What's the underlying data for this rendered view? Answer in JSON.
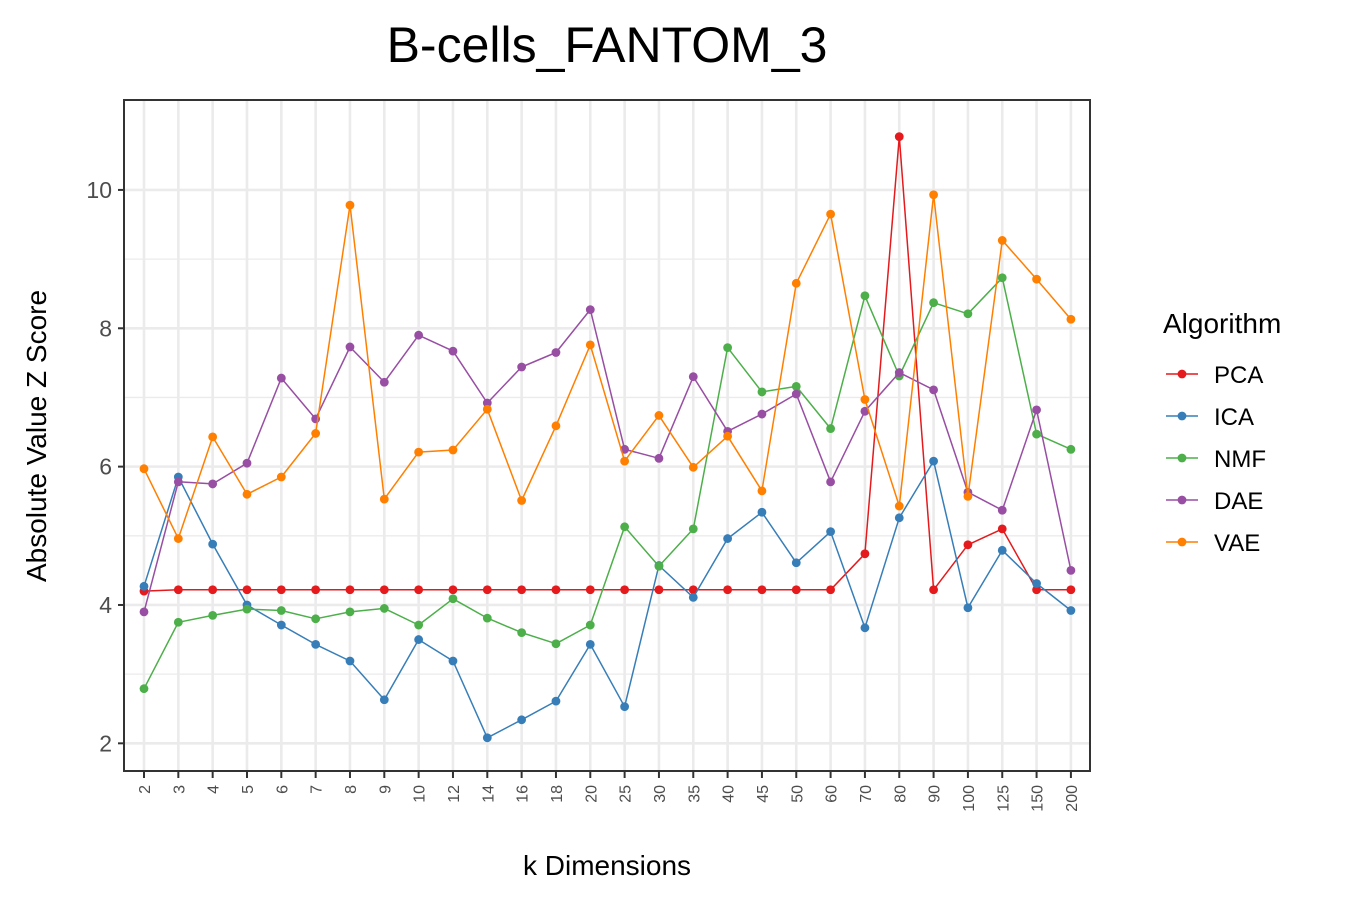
{
  "chart_data": {
    "type": "line",
    "title": "B-cells_FANTOM_3",
    "xlabel": "k Dimensions",
    "ylabel": "Absolute Value Z Score",
    "ylim": [
      1.6,
      11.3
    ],
    "yticks": [
      "2",
      "4",
      "6",
      "8",
      "10"
    ],
    "grid": true,
    "legend_title": "Algorithm",
    "legend_position": "right",
    "categories": [
      "2",
      "3",
      "4",
      "5",
      "6",
      "7",
      "8",
      "9",
      "10",
      "12",
      "14",
      "16",
      "18",
      "20",
      "25",
      "30",
      "35",
      "40",
      "45",
      "50",
      "60",
      "70",
      "80",
      "90",
      "100",
      "125",
      "150",
      "200"
    ],
    "series": [
      {
        "name": "PCA",
        "color": "#e41a1c",
        "values": [
          4.2,
          4.22,
          4.22,
          4.22,
          4.22,
          4.22,
          4.22,
          4.22,
          4.22,
          4.22,
          4.22,
          4.22,
          4.22,
          4.22,
          4.22,
          4.22,
          4.22,
          4.22,
          4.22,
          4.22,
          4.22,
          4.74,
          10.77,
          4.22,
          4.87,
          5.1,
          4.22,
          4.22
        ]
      },
      {
        "name": "ICA",
        "color": "#377eb8",
        "values": [
          4.27,
          5.85,
          4.88,
          4.0,
          3.71,
          3.43,
          3.19,
          2.63,
          3.5,
          3.19,
          2.08,
          2.34,
          2.61,
          3.43,
          2.53,
          4.57,
          4.11,
          4.96,
          5.34,
          4.61,
          5.06,
          3.67,
          5.26,
          6.08,
          3.96,
          4.79,
          4.31,
          3.92
        ]
      },
      {
        "name": "NMF",
        "color": "#4daf4a",
        "values": [
          2.79,
          3.75,
          3.85,
          3.94,
          3.92,
          3.8,
          3.9,
          3.95,
          3.71,
          4.09,
          3.81,
          3.6,
          3.44,
          3.71,
          5.13,
          4.56,
          5.1,
          7.72,
          7.08,
          7.16,
          6.55,
          8.47,
          7.31,
          8.37,
          8.21,
          8.73,
          6.47,
          6.25
        ]
      },
      {
        "name": "DAE",
        "color": "#984ea3",
        "values": [
          3.9,
          5.78,
          5.75,
          6.05,
          7.28,
          6.69,
          7.73,
          7.22,
          7.9,
          7.67,
          6.92,
          7.44,
          7.65,
          8.27,
          6.25,
          6.12,
          7.3,
          6.51,
          6.76,
          7.05,
          5.78,
          6.8,
          7.36,
          7.11,
          5.63,
          5.37,
          6.82,
          4.5
        ]
      },
      {
        "name": "VAE",
        "color": "#ff7f00",
        "values": [
          5.97,
          4.96,
          6.43,
          5.6,
          5.85,
          6.48,
          9.78,
          5.53,
          6.21,
          6.24,
          6.83,
          5.51,
          6.59,
          7.76,
          6.08,
          6.74,
          5.99,
          6.44,
          5.65,
          8.65,
          9.65,
          6.97,
          5.43,
          9.93,
          5.57,
          9.27,
          8.71,
          8.13
        ]
      }
    ]
  }
}
